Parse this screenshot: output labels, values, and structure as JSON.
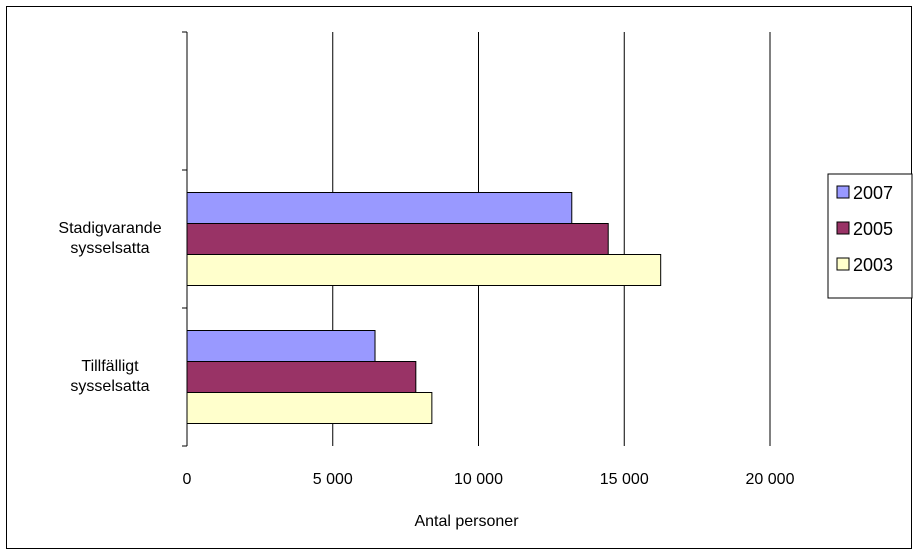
{
  "chart_data": {
    "type": "bar",
    "orientation": "horizontal",
    "categories": [
      "Stadigvarande sysselsatta",
      "Tillfälligt sysselsatta"
    ],
    "category_lines": [
      [
        "Stadigvarande",
        "sysselsatta"
      ],
      [
        "Tillfälligt",
        "sysselsatta"
      ]
    ],
    "series": [
      {
        "name": "2007",
        "color": "#9999ff",
        "values": [
          13200,
          6450
        ]
      },
      {
        "name": "2005",
        "color": "#993366",
        "values": [
          14450,
          7850
        ]
      },
      {
        "name": "2003",
        "color": "#ffffcc",
        "values": [
          16250,
          8400
        ]
      }
    ],
    "xlabel": "Antal personer",
    "xlim": [
      0,
      20000
    ],
    "xticks": [
      0,
      5000,
      10000,
      15000,
      20000
    ],
    "xtick_labels": [
      "0",
      "5 000",
      "10 000",
      "15 000",
      "20 000"
    ],
    "grid": "vertical",
    "legend": "right"
  }
}
